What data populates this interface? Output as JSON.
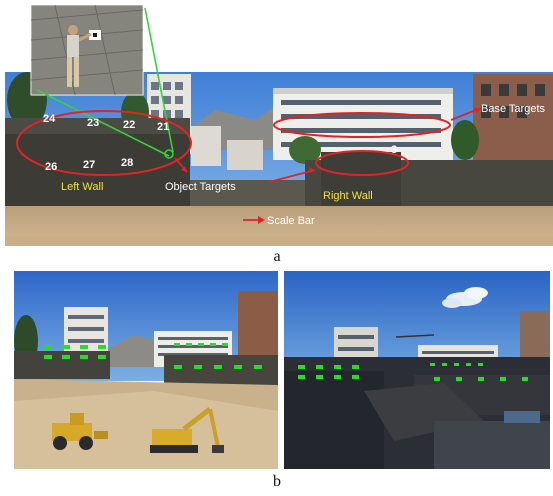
{
  "figure_a": {
    "caption": "a",
    "labels": {
      "base_targets": "Base Targets",
      "object_targets": "Object Targets",
      "scale_bar": "Scale Bar",
      "left_wall": "Left Wall",
      "right_wall": "Right Wall"
    },
    "point_numbers": [
      "24",
      "23",
      "22",
      "21",
      "26",
      "27",
      "28",
      "3"
    ],
    "colors": {
      "ellipse": "#e02424",
      "leader": "#37d237",
      "wall_label": "#f2e33a"
    }
  },
  "figure_b": {
    "caption": "b",
    "colors": {
      "target_marker": "#22e022"
    }
  }
}
